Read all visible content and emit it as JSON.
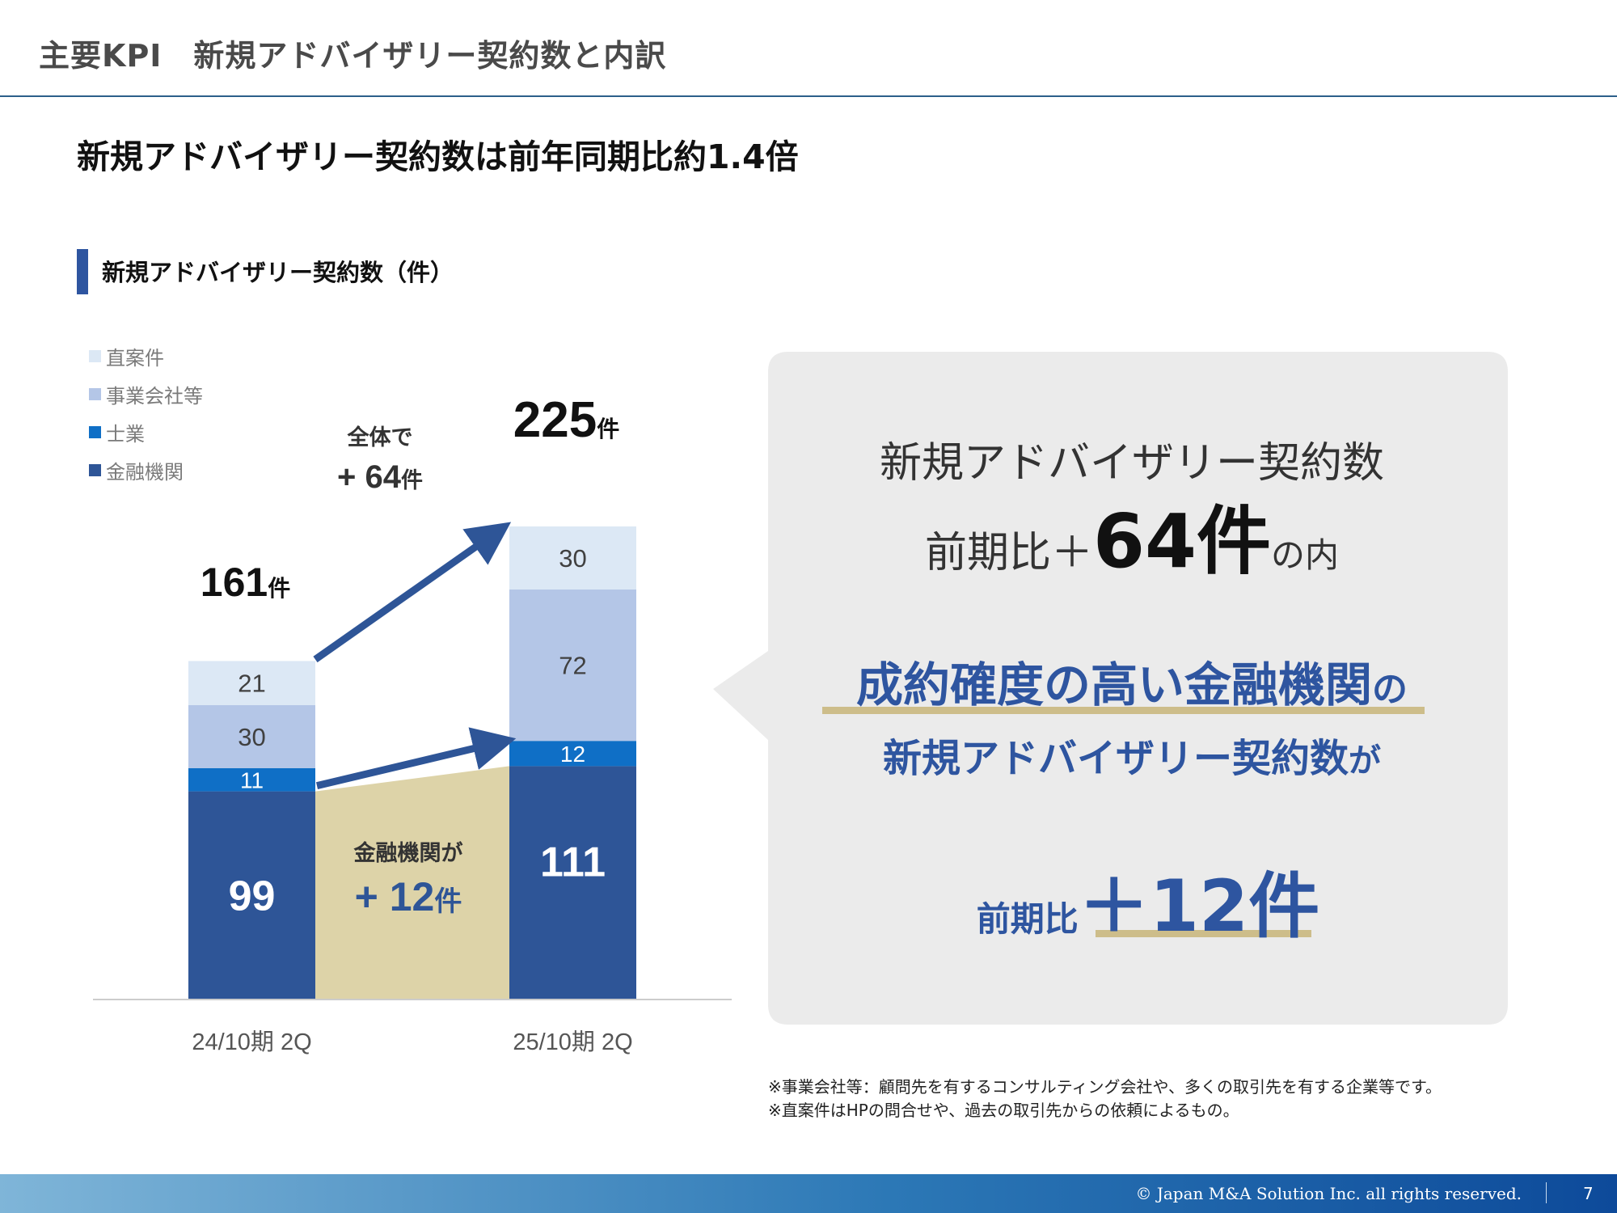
{
  "header": {
    "page_title": "主要KPI　新規アドバイザリー契約数と内訳",
    "headline": "新規アドバイザリー契約数は前年同期比約1.4倍"
  },
  "section": {
    "title": "新規アドバイザリー契約数（件）"
  },
  "legend": [
    {
      "label": "直案件",
      "color": "#dce8f5"
    },
    {
      "label": "事業会社等",
      "color": "#b4c6e7"
    },
    {
      "label": "士業",
      "color": "#0f6fc6"
    },
    {
      "label": "金融機関",
      "color": "#2e5597"
    }
  ],
  "chart_data": {
    "type": "bar",
    "stacked": true,
    "categories": [
      "24/10期 2Q",
      "25/10期 2Q"
    ],
    "series": [
      {
        "name": "金融機関",
        "values": [
          99,
          111
        ],
        "color": "#2e5597"
      },
      {
        "name": "士業",
        "values": [
          11,
          12
        ],
        "color": "#0f6fc6"
      },
      {
        "name": "事業会社等",
        "values": [
          30,
          72
        ],
        "color": "#b4c6e7"
      },
      {
        "name": "直案件",
        "values": [
          21,
          30
        ],
        "color": "#dce8f5"
      }
    ],
    "totals": [
      {
        "number": "161",
        "unit": "件"
      },
      {
        "number": "225",
        "unit": "件"
      }
    ],
    "annotations": {
      "total_change": {
        "line1": "全体で",
        "line2": "+ 64",
        "unit": "件"
      },
      "financial_change": {
        "line1": "金融機関が",
        "line2": "+ 12",
        "unit": "件"
      }
    },
    "ylim": [
      0,
      225
    ],
    "grid": false,
    "legend_position": "top-left"
  },
  "callout": {
    "line1": "新規アドバイザリー契約数",
    "line2_prefix": "前期比＋",
    "line2_big": "64件",
    "line2_suffix": "の内",
    "line3_main": "成約確度の高い金融機関",
    "line3_suffix": "の",
    "line4_main": "新規アドバイザリー契約数",
    "line4_suffix": "が",
    "line5_prefix": "前期比",
    "line5_big": "＋12件"
  },
  "footnotes": [
    "※事業会社等：顧問先を有するコンサルティング会社や、多くの取引先を有する企業等です。",
    "※直案件はHPの問合せや、過去の取引先からの依頼によるもの。"
  ],
  "footer": {
    "copyright": "© Japan M&A Solution Inc. all rights reserved.",
    "page_number": "7"
  }
}
